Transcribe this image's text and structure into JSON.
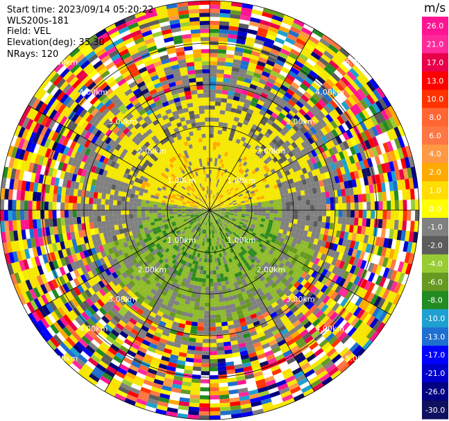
{
  "header": {
    "start_time": "Start time: 2023/09/14 05:20:22",
    "instrument": "WLS200s-181",
    "field": "Field: VEL",
    "elevation": "Elevation(deg): 35.30",
    "nrays": "NRays: 120"
  },
  "chart_data": {
    "type": "heatmap",
    "projection": "polar-ppi",
    "field": "VEL",
    "nrays": 120,
    "range_rings": [
      "1.00km",
      "2.00km",
      "3.00km",
      "4.00km",
      "5.00km"
    ],
    "colorbar": {
      "unit": "m/s",
      "ticks": [
        "26.0",
        "21.0",
        "17.0",
        "13.0",
        "10.0",
        "8.0",
        "6.0",
        "4.0",
        "2.0",
        "1.0",
        "0.0",
        "-1.0",
        "-2.0",
        "-4.0",
        "-6.0",
        "-8.0",
        "-10.0",
        "-13.0",
        "-17.0",
        "-21.0",
        "-26.0",
        "-30.0"
      ],
      "colors": [
        "#ff1493",
        "#ff2a9a",
        "#e8004a",
        "#ff0000",
        "#ff3300",
        "#ff6633",
        "#ff7744",
        "#ff9944",
        "#ffaa00",
        "#ffdd00",
        "#ffff00",
        "#808080",
        "#5c5c5c",
        "#99cc33",
        "#669922",
        "#228b22",
        "#1ea0d0",
        "#1e6fd0",
        "#0000ff",
        "#0000cc",
        "#000080",
        "#101060"
      ]
    },
    "colors": {
      "near_positive": "#f5e800",
      "near_negative": "#8fbc2a",
      "near_strong_negative": "#2e8b1e",
      "zero_gray": "#808080"
    }
  }
}
